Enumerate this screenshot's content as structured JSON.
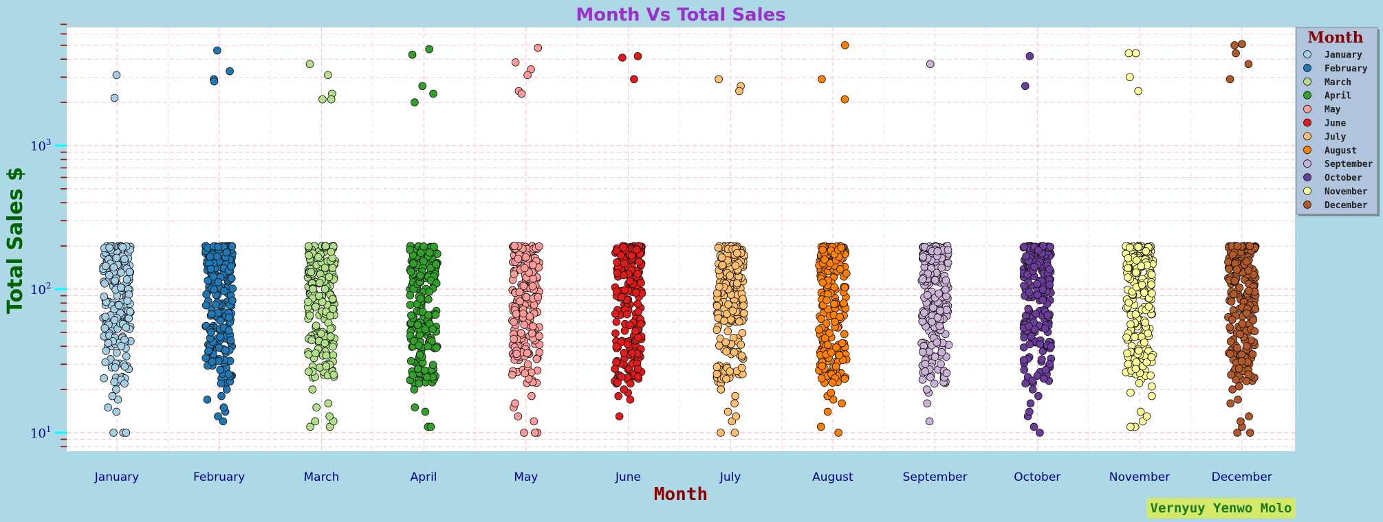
{
  "chart_data": {
    "type": "scatter",
    "title": "Month Vs Total Sales",
    "xlabel": "Month",
    "ylabel": "Total Sales $",
    "yscale": "log",
    "ylim": [
      7.5,
      7000
    ],
    "yticks": [
      {
        "base": "10",
        "exp": "1",
        "value": 10
      },
      {
        "base": "10",
        "exp": "2",
        "value": 100
      },
      {
        "base": "10",
        "exp": "3",
        "value": 1000
      }
    ],
    "grid": true,
    "legend_title": "Month",
    "legend_position": "upper right, outside plot",
    "categories": [
      "January",
      "February",
      "March",
      "April",
      "May",
      "June",
      "July",
      "August",
      "September",
      "October",
      "November",
      "December"
    ],
    "series": [
      {
        "name": "January",
        "color": "#a6cee3",
        "outliers": [
          3100,
          2150
        ],
        "low_points": [
          10,
          10,
          10,
          14,
          15,
          17,
          18,
          20,
          22
        ]
      },
      {
        "name": "February",
        "color": "#1f78b4",
        "outliers": [
          4600,
          3300,
          2900,
          2800
        ],
        "low_points": [
          12,
          13,
          14,
          15,
          17,
          18,
          20,
          22
        ]
      },
      {
        "name": "March",
        "color": "#b2df8a",
        "outliers": [
          3700,
          3100,
          2300,
          2100,
          2100
        ],
        "low_points": [
          11,
          11,
          12,
          12,
          13,
          15,
          16,
          20
        ]
      },
      {
        "name": "April",
        "color": "#33a02c",
        "outliers": [
          4700,
          4300,
          2600,
          2300,
          2000
        ],
        "low_points": [
          11,
          11,
          14,
          15,
          20,
          22
        ]
      },
      {
        "name": "May",
        "color": "#fb9a99",
        "outliers": [
          4800,
          3800,
          3400,
          3100,
          2400,
          2300
        ],
        "low_points": [
          10,
          10,
          10,
          12,
          13,
          15,
          16,
          18
        ]
      },
      {
        "name": "June",
        "color": "#e31a1c",
        "outliers": [
          4200,
          4100,
          2900
        ],
        "low_points": [
          13,
          17,
          18,
          19,
          20,
          22
        ]
      },
      {
        "name": "July",
        "color": "#fdbf6f",
        "outliers": [
          2900,
          2600,
          2400
        ],
        "low_points": [
          10,
          10,
          12,
          13,
          14,
          16,
          18,
          20
        ]
      },
      {
        "name": "August",
        "color": "#ff7f00",
        "outliers": [
          5000,
          2900,
          2100
        ],
        "low_points": [
          10,
          11,
          14,
          16,
          17,
          18,
          19
        ]
      },
      {
        "name": "September",
        "color": "#cab2d6",
        "outliers": [
          3700
        ],
        "low_points": [
          12,
          16,
          19,
          20,
          22
        ]
      },
      {
        "name": "October",
        "color": "#6a3d9a",
        "outliers": [
          4200,
          2600
        ],
        "low_points": [
          10,
          11,
          13,
          14,
          16,
          18,
          20
        ]
      },
      {
        "name": "November",
        "color": "#ffff99",
        "outliers": [
          4400,
          4400,
          3000,
          2400
        ],
        "low_points": [
          11,
          11,
          12,
          13,
          14,
          18,
          19,
          21
        ]
      },
      {
        "name": "December",
        "color": "#b15928",
        "outliers": [
          5100,
          5000,
          4400,
          3700,
          2900
        ],
        "low_points": [
          10,
          10,
          11,
          12,
          13,
          16,
          17,
          20,
          21
        ]
      }
    ],
    "main_band": [
      10,
      200
    ]
  },
  "watermark": "Vernyuy Yenwo Molo"
}
